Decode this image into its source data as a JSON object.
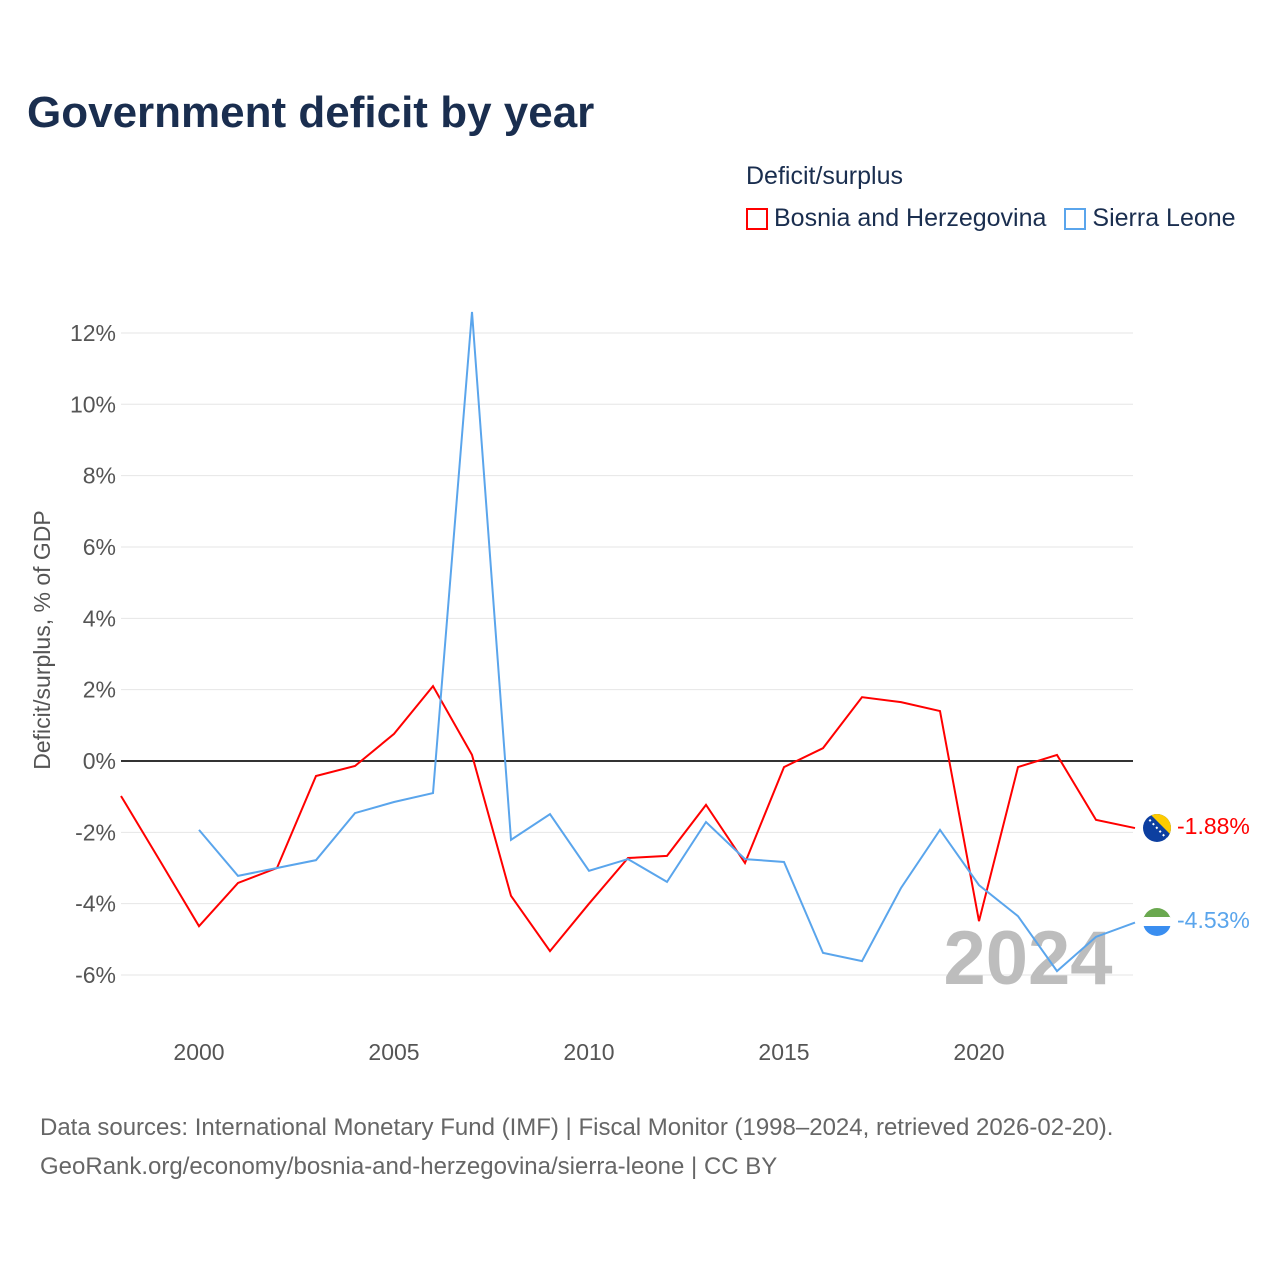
{
  "title": "Government deficit by year",
  "legend": {
    "title": "Deficit/surplus",
    "items": [
      {
        "label": "Bosnia and Herzegovina",
        "color": "#ff0000"
      },
      {
        "label": "Sierra Leone",
        "color": "#5aa5ec"
      }
    ]
  },
  "year_label": "2024",
  "source_line1": "Data sources: International Monetary Fund (IMF) | Fiscal Monitor (1998–2024, retrieved 2026-02-20).",
  "source_line2": "GeoRank.org/economy/bosnia-and-herzegovina/sierra-leone | CC BY",
  "chart_data": {
    "type": "line",
    "title": "Government deficit by year",
    "xlabel": "",
    "ylabel": "Deficit/surplus, % of GDP",
    "xlim": [
      1998,
      2024
    ],
    "ylim": [
      -7.1,
      12.6
    ],
    "yticks": [
      12,
      10,
      8,
      6,
      4,
      2,
      0,
      -2,
      -4,
      -6
    ],
    "ytick_labels": [
      "12%",
      "10%",
      "8%",
      "6%",
      "4%",
      "2%",
      "0%",
      "-2%",
      "-4%",
      "-6%"
    ],
    "xticks": [
      2000,
      2005,
      2010,
      2015,
      2020
    ],
    "xtick_labels": [
      "2000",
      "2005",
      "2010",
      "2015",
      "2020"
    ],
    "grid": true,
    "legend_position": "top-right",
    "series": [
      {
        "name": "Bosnia and Herzegovina",
        "color": "#ff0000",
        "end_label": "-1.88%",
        "x": [
          1998,
          1999,
          2000,
          2001,
          2002,
          2003,
          2004,
          2005,
          2006,
          2007,
          2008,
          2009,
          2010,
          2011,
          2012,
          2013,
          2014,
          2015,
          2016,
          2017,
          2018,
          2019,
          2020,
          2021,
          2022,
          2023,
          2024
        ],
        "values": [
          -0.98,
          -2.8,
          -4.63,
          -3.42,
          -3.0,
          -0.42,
          -0.14,
          0.76,
          2.1,
          0.17,
          -3.78,
          -5.33,
          -4.0,
          -2.72,
          -2.66,
          -1.23,
          -2.86,
          -0.17,
          0.36,
          1.79,
          1.65,
          1.4,
          -4.49,
          -0.17,
          0.17,
          -1.65,
          -1.88
        ]
      },
      {
        "name": "Sierra Leone",
        "color": "#5aa5ec",
        "end_label": "-4.53%",
        "x": [
          2000,
          2001,
          2002,
          2003,
          2004,
          2005,
          2006,
          2007,
          2008,
          2009,
          2010,
          2011,
          2012,
          2013,
          2014,
          2015,
          2016,
          2017,
          2018,
          2019,
          2020,
          2021,
          2022,
          2023,
          2024
        ],
        "values": [
          -1.93,
          -3.22,
          -3.0,
          -2.78,
          -1.46,
          -1.15,
          -0.9,
          12.59,
          -2.21,
          -1.49,
          -3.08,
          -2.75,
          -3.39,
          -1.71,
          -2.75,
          -2.83,
          -5.38,
          -5.61,
          -3.56,
          -1.93,
          -3.48,
          -4.35,
          -5.89,
          -4.93,
          -4.53
        ]
      }
    ]
  }
}
